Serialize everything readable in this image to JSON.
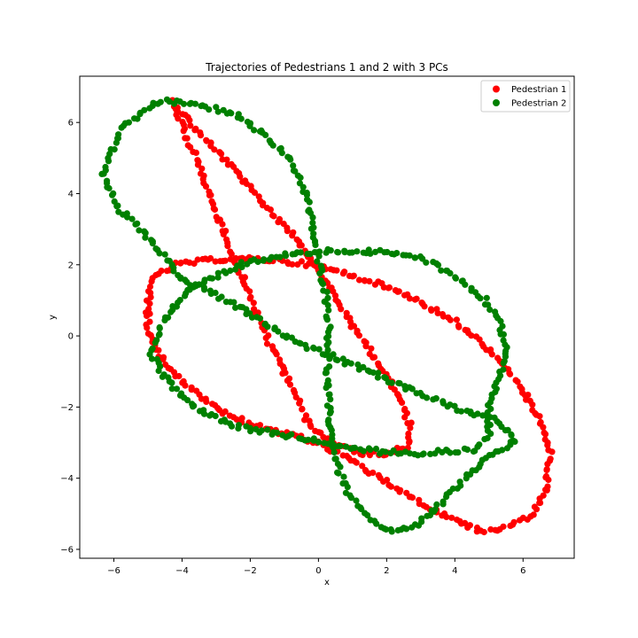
{
  "chart_data": {
    "type": "scatter",
    "title": "Trajectories of Pedestrians 1 and 2 with 3 PCs",
    "xlabel": "x",
    "ylabel": "y",
    "xlim": [
      -7.0,
      7.5
    ],
    "ylim": [
      -6.25,
      7.3
    ],
    "xticks": [
      -6,
      -4,
      -2,
      0,
      2,
      4,
      6
    ],
    "yticks": [
      -6,
      -4,
      -2,
      0,
      2,
      4,
      6
    ],
    "grid": false,
    "legend_position": "top-right",
    "series": [
      {
        "name": "Pedestrian 1",
        "color": "#ff0000",
        "curves": [
          {
            "closed": true,
            "vertices": [
              [
                -4.3,
                6.6
              ],
              [
                -3.5,
                5.7
              ],
              [
                -2.5,
                4.7
              ],
              [
                -1.5,
                3.6
              ],
              [
                -0.5,
                2.6
              ],
              [
                0.3,
                1.4
              ],
              [
                1.0,
                0.3
              ],
              [
                1.8,
                -0.8
              ],
              [
                2.4,
                -1.8
              ],
              [
                2.7,
                -2.6
              ],
              [
                2.6,
                -3.1
              ],
              [
                2.0,
                -3.3
              ],
              [
                1.2,
                -3.3
              ],
              [
                0.4,
                -3.0
              ],
              [
                -0.2,
                -2.6
              ],
              [
                -0.6,
                -1.8
              ],
              [
                -1.0,
                -1.0
              ],
              [
                -1.4,
                -0.3
              ],
              [
                -1.8,
                0.6
              ],
              [
                -2.2,
                1.6
              ],
              [
                -2.6,
                2.5
              ],
              [
                -2.9,
                3.2
              ],
              [
                -3.2,
                4.0
              ],
              [
                -3.6,
                5.0
              ],
              [
                -4.0,
                5.9
              ]
            ]
          },
          {
            "closed": true,
            "vertices": [
              [
                -4.9,
                1.6
              ],
              [
                -4.2,
                2.0
              ],
              [
                -3.0,
                2.15
              ],
              [
                -1.5,
                2.15
              ],
              [
                -0.2,
                2.0
              ],
              [
                1.0,
                1.7
              ],
              [
                2.5,
                1.2
              ],
              [
                4.0,
                0.4
              ],
              [
                5.0,
                -0.4
              ],
              [
                5.8,
                -1.3
              ],
              [
                6.5,
                -2.3
              ],
              [
                6.8,
                -3.3
              ],
              [
                6.7,
                -4.3
              ],
              [
                6.3,
                -5.0
              ],
              [
                5.6,
                -5.4
              ],
              [
                4.8,
                -5.5
              ],
              [
                3.8,
                -5.1
              ],
              [
                2.8,
                -4.6
              ],
              [
                1.8,
                -4.0
              ],
              [
                1.0,
                -3.5
              ],
              [
                0.0,
                -3.0
              ],
              [
                -1.2,
                -2.7
              ],
              [
                -2.5,
                -2.3
              ],
              [
                -3.6,
                -1.6
              ],
              [
                -4.5,
                -0.8
              ],
              [
                -5.0,
                0.1
              ],
              [
                -5.0,
                0.9
              ]
            ]
          }
        ]
      },
      {
        "name": "Pedestrian 2",
        "color": "#008000",
        "curves": [
          {
            "closed": true,
            "vertices": [
              [
                -6.3,
                4.5
              ],
              [
                -5.8,
                5.8
              ],
              [
                -5.2,
                6.3
              ],
              [
                -4.6,
                6.6
              ],
              [
                -3.5,
                6.5
              ],
              [
                -2.4,
                6.2
              ],
              [
                -1.5,
                5.6
              ],
              [
                -0.8,
                4.9
              ],
              [
                -0.4,
                4.1
              ],
              [
                -0.2,
                3.2
              ],
              [
                -0.05,
                2.3
              ],
              [
                0.2,
                1.3
              ],
              [
                0.3,
                0.5
              ],
              [
                0.3,
                -0.3
              ],
              [
                0.25,
                -1.2
              ],
              [
                0.3,
                -2.1
              ],
              [
                0.4,
                -3.0
              ],
              [
                0.6,
                -3.8
              ],
              [
                0.9,
                -4.5
              ],
              [
                1.4,
                -5.1
              ],
              [
                2.1,
                -5.5
              ],
              [
                2.9,
                -5.3
              ],
              [
                3.6,
                -4.7
              ],
              [
                4.2,
                -4.1
              ],
              [
                4.8,
                -3.5
              ],
              [
                5.3,
                -3.2
              ],
              [
                5.8,
                -3.0
              ],
              [
                5.5,
                -2.6
              ],
              [
                5.0,
                -2.3
              ],
              [
                4.2,
                -2.1
              ],
              [
                3.2,
                -1.7
              ],
              [
                2.2,
                -1.3
              ],
              [
                1.2,
                -0.9
              ],
              [
                0.2,
                -0.5
              ],
              [
                -0.8,
                -0.1
              ],
              [
                -1.8,
                0.5
              ],
              [
                -2.7,
                1.0
              ],
              [
                -3.3,
                1.3
              ],
              [
                -4.0,
                1.6
              ],
              [
                -4.7,
                2.4
              ],
              [
                -5.3,
                3.1
              ],
              [
                -5.9,
                3.6
              ]
            ]
          },
          {
            "closed": true,
            "vertices": [
              [
                -4.6,
                0.3
              ],
              [
                -3.9,
                1.2
              ],
              [
                -3.0,
                1.7
              ],
              [
                -2.0,
                2.1
              ],
              [
                -0.8,
                2.3
              ],
              [
                0.5,
                2.4
              ],
              [
                1.8,
                2.35
              ],
              [
                3.0,
                2.2
              ],
              [
                4.0,
                1.7
              ],
              [
                4.8,
                1.1
              ],
              [
                5.3,
                0.5
              ],
              [
                5.5,
                -0.4
              ],
              [
                5.3,
                -1.2
              ],
              [
                5.0,
                -2.0
              ],
              [
                5.0,
                -2.8
              ],
              [
                4.6,
                -3.2
              ],
              [
                3.8,
                -3.25
              ],
              [
                2.8,
                -3.3
              ],
              [
                1.8,
                -3.25
              ],
              [
                0.8,
                -3.1
              ],
              [
                -0.3,
                -2.9
              ],
              [
                -1.5,
                -2.7
              ],
              [
                -2.6,
                -2.5
              ],
              [
                -3.6,
                -2.0
              ],
              [
                -4.4,
                -1.3
              ],
              [
                -4.9,
                -0.5
              ]
            ]
          }
        ]
      }
    ]
  }
}
